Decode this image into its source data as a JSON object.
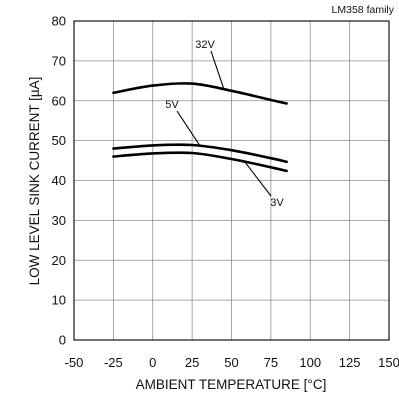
{
  "chart_data": {
    "type": "line",
    "top_note": "LM358  family",
    "xlabel": "AMBIENT TEMPERATURE [°C]",
    "ylabel": "LOW LEVEL SINK CURRENT [µA]",
    "xlim": [
      -50,
      150
    ],
    "ylim": [
      0,
      80
    ],
    "xticks": [
      -50,
      -25,
      0,
      25,
      50,
      75,
      100,
      125,
      150
    ],
    "yticks": [
      0,
      10,
      20,
      30,
      40,
      50,
      60,
      70,
      80
    ],
    "grid": true,
    "legend": "none",
    "series": [
      {
        "name": "32V",
        "x": [
          -25,
          0,
          25,
          50,
          75,
          85
        ],
        "y": [
          62,
          63.8,
          64.3,
          62.5,
          60.2,
          59.3
        ]
      },
      {
        "name": "5V",
        "x": [
          -25,
          0,
          25,
          50,
          75,
          85
        ],
        "y": [
          48,
          48.8,
          48.9,
          47.6,
          45.6,
          44.7
        ]
      },
      {
        "name": "3V",
        "x": [
          -25,
          0,
          25,
          50,
          75,
          85
        ],
        "y": [
          46,
          46.8,
          46.9,
          45.4,
          43.3,
          42.4
        ]
      }
    ]
  }
}
